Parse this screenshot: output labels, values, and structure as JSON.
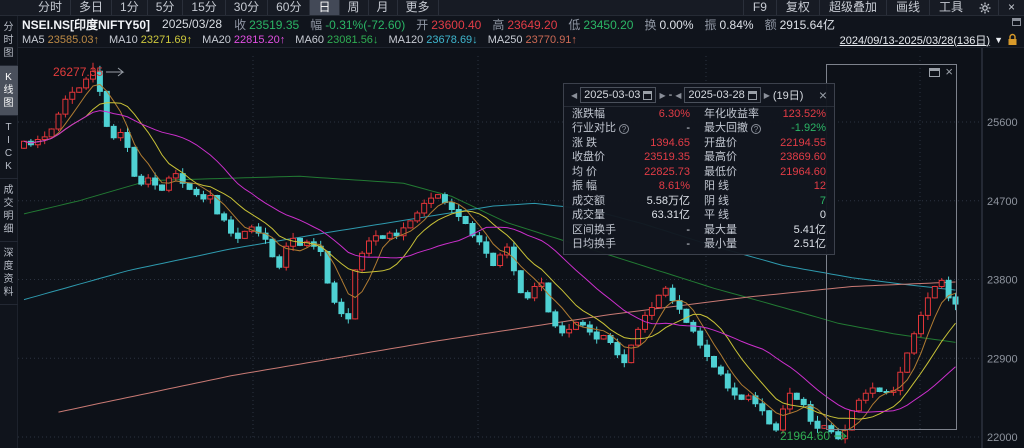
{
  "toolbar": {
    "tabs": [
      "分时",
      "多日",
      "1分",
      "5分",
      "15分",
      "30分",
      "60分",
      "日",
      "周",
      "月",
      "更多"
    ],
    "active_tab": "日",
    "right_items": [
      "F9",
      "复权",
      "超级叠加",
      "画线",
      "工具"
    ],
    "gear_icon": "gear",
    "close_icon": "×"
  },
  "quote_bar": {
    "symbol": "NSEI.NS[印度NIFTY50]",
    "date": "2025/03/28",
    "fields": [
      {
        "label": "收",
        "value": "23519.35",
        "color": "green"
      },
      {
        "label": "幅",
        "value": "-0.31%(-72.60)",
        "color": "green"
      },
      {
        "label": "开",
        "value": "23600.40",
        "color": "red"
      },
      {
        "label": "高",
        "value": "23649.20",
        "color": "red"
      },
      {
        "label": "低",
        "value": "23450.20",
        "color": "green"
      },
      {
        "label": "换",
        "value": "0.00%",
        "color": "white"
      },
      {
        "label": "振",
        "value": "0.84%",
        "color": "white"
      },
      {
        "label": "额",
        "value": "2915.64亿",
        "color": "white"
      }
    ]
  },
  "ma_bar": {
    "items": [
      {
        "name": "MA5",
        "value": "23585.03",
        "dir": "↑",
        "color": "#bd8a45"
      },
      {
        "name": "MA10",
        "value": "23271.69",
        "dir": "↑",
        "color": "#cdc83d"
      },
      {
        "name": "MA20",
        "value": "22815.20",
        "dir": "↑",
        "color": "#e14fe1"
      },
      {
        "name": "MA60",
        "value": "23081.56",
        "dir": "↓",
        "color": "#2fae52"
      },
      {
        "name": "MA120",
        "value": "23678.69",
        "dir": "↓",
        "color": "#3fb6ce"
      },
      {
        "name": "MA250",
        "value": "23770.91",
        "dir": "↑",
        "color": "#cd6a55"
      }
    ],
    "range_label": "2024/09/13-2025/03/28(136日)",
    "range_caret": "▼"
  },
  "sidebar": {
    "items": [
      {
        "label": "分时图",
        "active": false
      },
      {
        "label": "K线图",
        "active": true
      },
      {
        "label": "TICK",
        "active": false
      },
      {
        "label": "成交明细",
        "active": false
      },
      {
        "label": "深度资料",
        "active": false
      }
    ]
  },
  "panel": {
    "date_from": "2025-03-03",
    "date_to": "2025-03-28",
    "separator": "-",
    "days_label": "(19日)",
    "close_icon": "×",
    "rows": [
      {
        "l1": "涨跌幅",
        "q1": false,
        "v1": "6.30%",
        "c1": "red",
        "l2": "年化收益率",
        "q2": false,
        "v2": "123.52%",
        "c2": "red"
      },
      {
        "l1": "行业对比",
        "q1": true,
        "v1": "-",
        "c1": "white",
        "l2": "最大回撤",
        "q2": true,
        "v2": "-1.92%",
        "c2": "green"
      },
      {
        "l1": "涨 跌",
        "q1": false,
        "v1": "1394.65",
        "c1": "red",
        "l2": "开盘价",
        "q2": false,
        "v2": "22194.55",
        "c2": "red"
      },
      {
        "l1": "收盘价",
        "q1": false,
        "v1": "23519.35",
        "c1": "red",
        "l2": "最高价",
        "q2": false,
        "v2": "23869.60",
        "c2": "red"
      },
      {
        "l1": "均 价",
        "q1": false,
        "v1": "22825.73",
        "c1": "red",
        "l2": "最低价",
        "q2": false,
        "v2": "21964.60",
        "c2": "red"
      },
      {
        "l1": "振 幅",
        "q1": false,
        "v1": "8.61%",
        "c1": "red",
        "l2": "阳 线",
        "q2": false,
        "v2": "12",
        "c2": "red"
      },
      {
        "l1": "成交额",
        "q1": false,
        "v1": "5.58万亿",
        "c1": "white",
        "l2": "阴 线",
        "q2": false,
        "v2": "7",
        "c2": "green"
      },
      {
        "l1": "成交量",
        "q1": false,
        "v1": "63.31亿",
        "c1": "white",
        "l2": "平 线",
        "q2": false,
        "v2": "0",
        "c2": "white"
      },
      {
        "l1": "区间换手",
        "q1": false,
        "v1": "-",
        "c1": "white",
        "l2": "最大量",
        "q2": false,
        "v2": "5.41亿",
        "c2": "white"
      },
      {
        "l1": "日均换手",
        "q1": false,
        "v1": "-",
        "c1": "white",
        "l2": "最小量",
        "q2": false,
        "v2": "2.51亿",
        "c2": "white"
      }
    ]
  },
  "chart_data": {
    "type": "candlestick",
    "symbol": "NSEI.NS[印度NIFTY50]",
    "date_range": "2024/09/13-2025/03/28",
    "bars": 136,
    "y_axis_ticks": [
      25600,
      24700,
      23800,
      22900,
      22000
    ],
    "y_range": [
      21800,
      26400
    ],
    "period_high": 26277.35,
    "period_low": 21964.6,
    "closes": [
      25380,
      25340,
      25400,
      25430,
      25520,
      25690,
      25860,
      25940,
      25990,
      26090,
      26180,
      25950,
      25550,
      25420,
      25480,
      25310,
      24980,
      24890,
      24960,
      24880,
      24820,
      24960,
      25010,
      24900,
      24830,
      24770,
      24720,
      24760,
      24550,
      24480,
      24330,
      24270,
      24350,
      24400,
      24330,
      24260,
      24060,
      23940,
      24180,
      24270,
      24190,
      24230,
      24180,
      24120,
      23760,
      23540,
      23410,
      23350,
      23910,
      24100,
      24240,
      24300,
      24270,
      24330,
      24300,
      24390,
      24470,
      24560,
      24670,
      24730,
      24770,
      24680,
      24600,
      24520,
      24440,
      24300,
      24230,
      24100,
      23960,
      24080,
      24170,
      23900,
      23650,
      23590,
      23720,
      23760,
      23430,
      23270,
      23190,
      23230,
      23310,
      23280,
      23200,
      23120,
      23160,
      23080,
      22940,
      22850,
      23050,
      23230,
      23390,
      23480,
      23620,
      23700,
      23560,
      23460,
      23310,
      23210,
      23050,
      22920,
      22800,
      22720,
      22560,
      22480,
      22430,
      22470,
      22380,
      22300,
      22150,
      22080,
      22320,
      22500,
      22430,
      22370,
      22180,
      22100,
      22130,
      22060,
      21980,
      22080,
      22300,
      22420,
      22500,
      22560,
      22520,
      22510,
      22530,
      22740,
      22960,
      23180,
      23390,
      23590,
      23720,
      23790,
      23590,
      23519.35
    ],
    "first_open": 25300,
    "overrides": {
      "high_idx": 10,
      "high_value": 26277.35,
      "low_idx": 118,
      "low_value": 21964.6,
      "last": {
        "open": 23600.4,
        "high": 23649.2,
        "low": 23450.2,
        "close": 23519.35
      }
    },
    "colors": {
      "up": "#e23539",
      "down": "#4fd1d3",
      "grid": "#2c3340",
      "axis_line": "#3a4150",
      "axis_text": "#8e949e"
    },
    "ma_computed": [
      {
        "name": "MA5",
        "period": 5,
        "color": "#b07c32"
      },
      {
        "name": "MA10",
        "period": 10,
        "color": "#c9c237"
      },
      {
        "name": "MA20",
        "period": 20,
        "color": "#cc2fcc"
      }
    ],
    "ma_anchor_lines": [
      {
        "name": "MA60",
        "color": "#227a33",
        "points": [
          [
            0,
            24550
          ],
          [
            8,
            24700
          ],
          [
            18,
            24930
          ],
          [
            40,
            24980
          ],
          [
            55,
            24900
          ],
          [
            62,
            24750
          ],
          [
            70,
            24450
          ],
          [
            80,
            24200
          ],
          [
            90,
            23950
          ],
          [
            100,
            23700
          ],
          [
            110,
            23480
          ],
          [
            118,
            23300
          ],
          [
            126,
            23180
          ],
          [
            135,
            23081.56
          ]
        ]
      },
      {
        "name": "MA120",
        "color": "#2e9aae",
        "points": [
          [
            0,
            23570
          ],
          [
            15,
            23900
          ],
          [
            30,
            24150
          ],
          [
            45,
            24350
          ],
          [
            57,
            24500
          ],
          [
            68,
            24640
          ],
          [
            74,
            24670
          ],
          [
            82,
            24600
          ],
          [
            90,
            24430
          ],
          [
            100,
            24180
          ],
          [
            110,
            23960
          ],
          [
            120,
            23820
          ],
          [
            128,
            23740
          ],
          [
            135,
            23678.69
          ]
        ]
      },
      {
        "name": "MA250",
        "color": "#c97a74",
        "points": [
          [
            5,
            22285
          ],
          [
            30,
            22700
          ],
          [
            60,
            23100
          ],
          [
            85,
            23400
          ],
          [
            105,
            23600
          ],
          [
            120,
            23720
          ],
          [
            135,
            23770.91
          ]
        ]
      }
    ],
    "selection": {
      "start_idx": 117,
      "end_idx": 135,
      "label": "19日"
    },
    "annotations": {
      "high_label": {
        "text": "26277.35",
        "color": "#e23c3c"
      },
      "low_label": {
        "text": "21964.60",
        "color": "#2fae52"
      }
    }
  },
  "colors": {
    "red": "#e23c46",
    "green": "#2bb565",
    "white": "#dde1e8"
  }
}
